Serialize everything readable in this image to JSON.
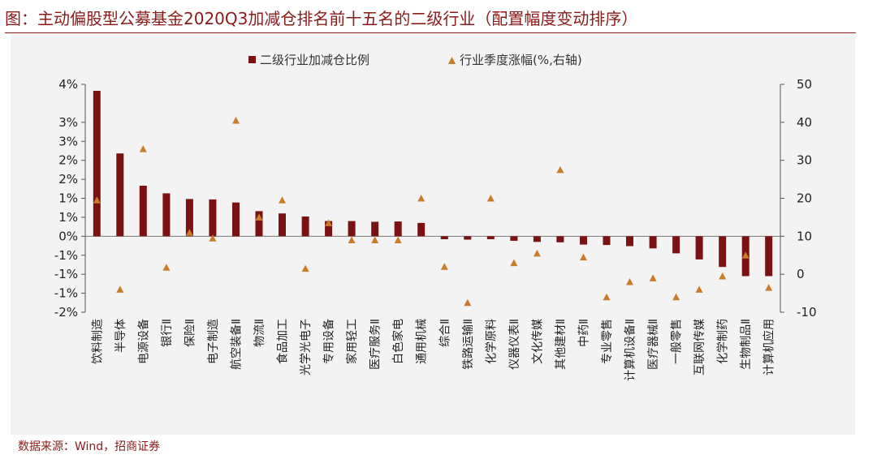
{
  "header": {
    "title": "图：主动偏股型公募基金2020Q3加减仓排名前十五名的二级行业（配置幅度变动排序）"
  },
  "footer": {
    "source": "数据来源：Wind，招商证券"
  },
  "chart_data": {
    "type": "bar",
    "categories": [
      "饮料制造",
      "半导体",
      "电源设备",
      "银行Ⅱ",
      "保险Ⅱ",
      "电子制造",
      "航空装备Ⅱ",
      "物流Ⅱ",
      "食品加工",
      "光学光电子",
      "专用设备",
      "家用轻工",
      "医疗服务Ⅱ",
      "白色家电",
      "通用机械",
      "综合Ⅱ",
      "铁路运输Ⅱ",
      "化学原料",
      "仪器仪表Ⅱ",
      "文化传媒",
      "其他建材Ⅱ",
      "中药Ⅱ",
      "专业零售",
      "计算机设备Ⅱ",
      "医疗器械Ⅱ",
      "一般零售",
      "互联网传媒",
      "化学制药",
      "生物制品Ⅱ",
      "计算机应用"
    ],
    "series": [
      {
        "name": "二级行业加减仓比例",
        "type": "bar",
        "axis": "left",
        "color": "#7b1113",
        "values": [
          0.0383,
          0.0218,
          0.0133,
          0.0113,
          0.0098,
          0.0097,
          0.0089,
          0.0066,
          0.006,
          0.0052,
          0.004,
          0.004,
          0.0038,
          0.0039,
          0.0035,
          -0.0008,
          -0.0009,
          -0.0008,
          -0.0012,
          -0.0015,
          -0.0016,
          -0.0022,
          -0.0023,
          -0.0026,
          -0.0032,
          -0.0045,
          -0.0061,
          -0.0081,
          -0.0105,
          -0.0105
        ]
      },
      {
        "name": "行业季度涨幅(%,右轴)",
        "type": "scatter",
        "axis": "right",
        "color": "#c97d2a",
        "marker": "triangle",
        "values": [
          19.5,
          -4.0,
          33.0,
          1.8,
          11.0,
          9.5,
          40.5,
          15.0,
          19.5,
          1.5,
          13.5,
          9.0,
          9.0,
          9.0,
          20.0,
          2.0,
          -7.5,
          20.0,
          3.0,
          5.5,
          27.5,
          4.5,
          -6.0,
          -2.0,
          -1.0,
          -6.0,
          -4.0,
          -0.5,
          5.0,
          -3.5
        ]
      }
    ],
    "y_left": {
      "ylim": [
        -0.02,
        0.04
      ],
      "ticks": [
        0.04,
        0.03,
        0.025,
        0.02,
        0.015,
        0.01,
        0.005,
        0.0,
        -0.005,
        -0.01,
        -0.015,
        -0.02
      ],
      "tick_labels": [
        "4%",
        "3%",
        "3%",
        "2%",
        "2%",
        "1%",
        "1%",
        "0%",
        "-1%",
        "-1%",
        "-1%",
        "-2%"
      ]
    },
    "y_right": {
      "ylim": [
        -10,
        50
      ],
      "ticks": [
        50,
        40,
        30,
        20,
        10,
        0,
        -10
      ],
      "tick_labels": [
        "50",
        "40",
        "30",
        "20",
        "10",
        "0",
        "-10"
      ]
    },
    "legend": {
      "position": "top-center"
    },
    "grid": false
  }
}
